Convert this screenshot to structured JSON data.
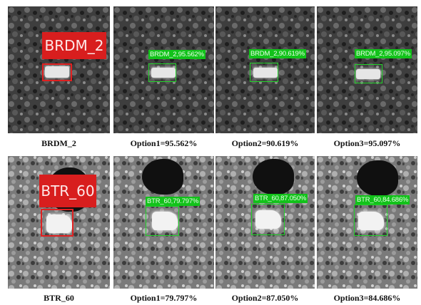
{
  "rows": [
    {
      "truth_label": "BRDM_2",
      "captions": [
        "BRDM_2",
        "Option1=95.562%",
        "Option2=90.619%",
        "Option3=95.097%"
      ],
      "detections": [
        "BRDM_2,95.562%",
        "BRDM_2,90.619%",
        "BRDM_2,95.097%"
      ]
    },
    {
      "truth_label": "BTR_60",
      "captions": [
        "BTR_60",
        "Option1=79.797%",
        "Option2=87.050%",
        "Option3=84.686%"
      ],
      "detections": [
        "BTR_60,79.797%",
        "BTR_60,87.050%",
        "BTR_60,84.686%"
      ]
    }
  ],
  "colors": {
    "truth": "#d81e1e",
    "detection": "#12c21a"
  }
}
